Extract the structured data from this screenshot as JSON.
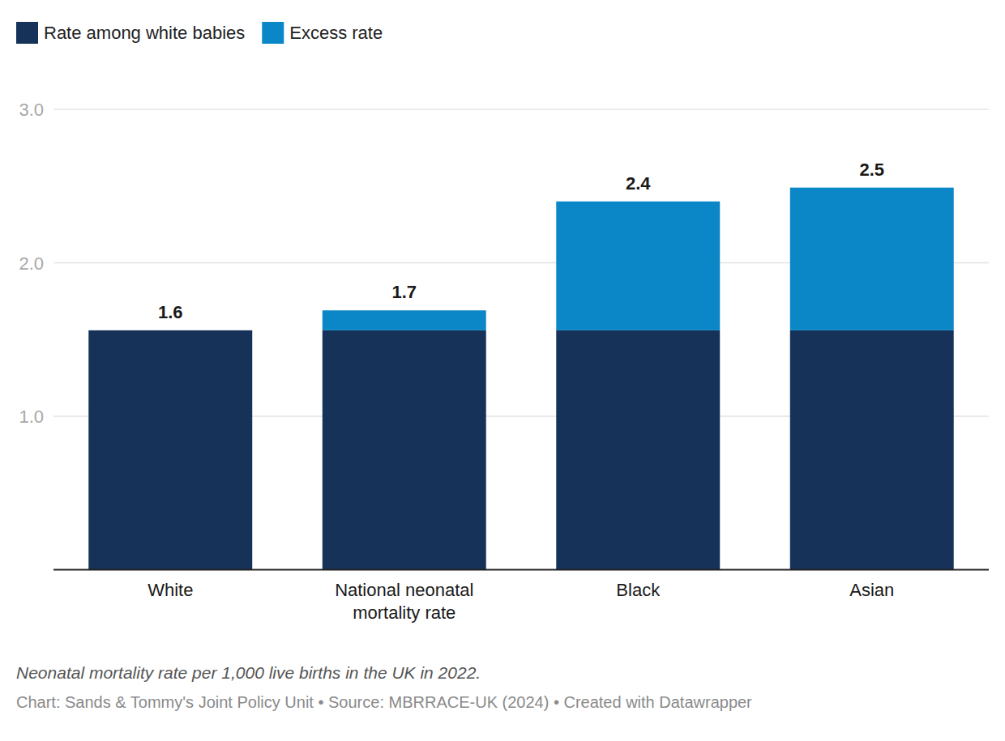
{
  "chart_data": {
    "type": "bar",
    "stacked": true,
    "legend": "top-left",
    "grid": true,
    "categories": [
      "White",
      "National neonatal mortality rate",
      "Black",
      "Asian"
    ],
    "series": [
      {
        "name": "Rate among white babies",
        "color": "#163259",
        "values": [
          1.56,
          1.56,
          1.56,
          1.56
        ]
      },
      {
        "name": "Excess rate",
        "color": "#0b87c8",
        "values": [
          0,
          0.13,
          0.84,
          0.93
        ]
      }
    ],
    "totals": [
      1.6,
      1.7,
      2.4,
      2.5
    ],
    "ylim": [
      0,
      3
    ],
    "yticks": [
      {
        "value": 1,
        "label": "1.0"
      },
      {
        "value": 2,
        "label": "2.0"
      },
      {
        "value": 3,
        "label": "3.0"
      }
    ],
    "caption": "Neonatal mortality rate per 1,000 live births in the UK in 2022.",
    "source": "Chart: Sands & Tommy's Joint Policy Unit • Source: MBRRACE-UK (2024) • Created with Datawrapper"
  }
}
